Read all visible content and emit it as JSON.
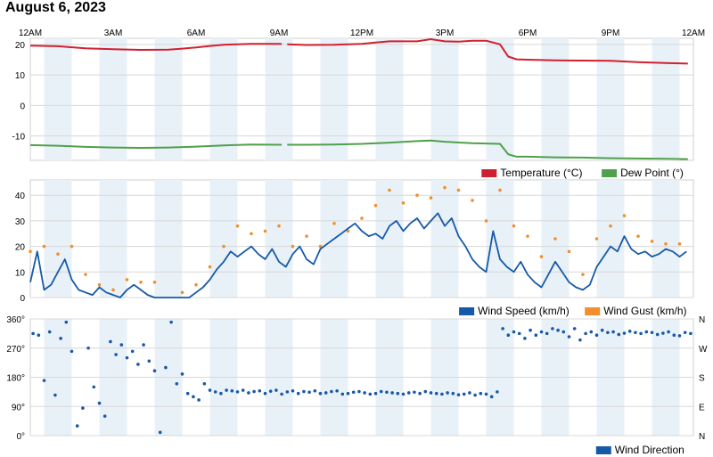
{
  "title": "August 6, 2023",
  "colors": {
    "temperature": "#d0202f",
    "dew_point": "#4fa04a",
    "wind_speed": "#1659a8",
    "wind_gust": "#f28e2b",
    "wind_direction": "#1659a8",
    "band": "#e8f1f8",
    "grid": "#d8d8d8"
  },
  "time_axis": {
    "labels": [
      "12AM",
      "3AM",
      "6AM",
      "9AM",
      "12PM",
      "3PM",
      "6PM",
      "9PM",
      "12AM"
    ],
    "range_hours": [
      0,
      24
    ]
  },
  "chart_data": [
    {
      "type": "line",
      "ylim": [
        -18,
        22
      ],
      "yticks": [
        "20",
        "10",
        "0",
        "-10"
      ],
      "legend": [
        "Temperature (°C)",
        "Dew Point (°)"
      ],
      "gap_hours": [
        9.1,
        9.3
      ],
      "series": [
        {
          "name": "Temperature (°C)",
          "x": [
            0,
            1,
            2,
            3,
            4,
            5,
            5.5,
            6,
            6.5,
            7,
            8,
            9,
            9.1,
            9.3,
            10,
            11,
            12,
            12.5,
            13,
            14,
            14.5,
            15,
            15.5,
            16,
            16.5,
            17,
            17.3,
            17.6,
            18,
            19,
            20,
            21,
            22,
            23,
            23.8
          ],
          "values": [
            19.6,
            19.4,
            18.7,
            18.4,
            18.2,
            18.3,
            18.6,
            19.0,
            19.5,
            19.9,
            20.2,
            20.2,
            20.1,
            20.0,
            19.8,
            19.9,
            20.2,
            20.6,
            21.0,
            21.0,
            21.7,
            21.0,
            20.9,
            21.2,
            21.2,
            20.0,
            16.0,
            15.1,
            15.0,
            14.8,
            14.7,
            14.6,
            14.2,
            13.9,
            13.7
          ]
        },
        {
          "name": "Dew Point (°)",
          "x": [
            0,
            1,
            2,
            3,
            4,
            5,
            6,
            7,
            8,
            9,
            9.1,
            9.3,
            10,
            11,
            12,
            13,
            14,
            14.5,
            15,
            16,
            17,
            17.3,
            17.6,
            18,
            19,
            20,
            21,
            22,
            23,
            23.8
          ],
          "values": [
            -13.0,
            -13.2,
            -13.6,
            -13.8,
            -13.9,
            -13.8,
            -13.5,
            -13.1,
            -12.8,
            -12.9,
            -12.9,
            -12.9,
            -12.9,
            -12.8,
            -12.6,
            -12.2,
            -11.7,
            -11.5,
            -11.9,
            -12.4,
            -12.6,
            -16.0,
            -16.8,
            -16.8,
            -17.0,
            -17.1,
            -17.3,
            -17.4,
            -17.5,
            -17.6
          ]
        }
      ]
    },
    {
      "type": "line",
      "ylim": [
        0,
        46
      ],
      "yticks": [
        "40",
        "30",
        "20",
        "10",
        "0"
      ],
      "legend": [
        "Wind Speed (km/h)",
        "Wind Gust (km/h)"
      ],
      "series": [
        {
          "name": "Wind Speed (km/h)",
          "x": [
            0,
            0.25,
            0.5,
            0.75,
            1,
            1.25,
            1.5,
            1.75,
            2,
            2.25,
            2.5,
            2.75,
            3,
            3.25,
            3.5,
            3.75,
            4,
            4.25,
            4.5,
            4.75,
            5,
            5.25,
            5.5,
            5.75,
            6,
            6.25,
            6.5,
            6.75,
            7,
            7.25,
            7.5,
            7.75,
            8,
            8.25,
            8.5,
            8.75,
            9,
            9.25,
            9.5,
            9.75,
            10,
            10.25,
            10.5,
            10.75,
            11,
            11.25,
            11.5,
            11.75,
            12,
            12.25,
            12.5,
            12.75,
            13,
            13.25,
            13.5,
            13.75,
            14,
            14.25,
            14.5,
            14.75,
            15,
            15.25,
            15.5,
            15.75,
            16,
            16.25,
            16.5,
            16.75,
            17,
            17.25,
            17.5,
            17.75,
            18,
            18.25,
            18.5,
            18.75,
            19,
            19.25,
            19.5,
            19.75,
            20,
            20.25,
            20.5,
            20.75,
            21,
            21.25,
            21.5,
            21.75,
            22,
            22.25,
            22.5,
            22.75,
            23,
            23.25,
            23.5,
            23.75
          ],
          "values": [
            6,
            18,
            3,
            5,
            10,
            15,
            7,
            3,
            2,
            1,
            4,
            2,
            1,
            0,
            3,
            5,
            3,
            1,
            0,
            0,
            0,
            0,
            0,
            0,
            2,
            4,
            7,
            11,
            14,
            18,
            16,
            18,
            20,
            17,
            15,
            19,
            14,
            12,
            17,
            20,
            15,
            13,
            19,
            21,
            23,
            25,
            27,
            29,
            26,
            24,
            25,
            23,
            28,
            30,
            26,
            29,
            31,
            27,
            30,
            33,
            28,
            31,
            24,
            20,
            15,
            12,
            10,
            26,
            15,
            12,
            10,
            14,
            9,
            6,
            4,
            9,
            14,
            10,
            6,
            4,
            3,
            5,
            12,
            16,
            20,
            18,
            24,
            19,
            17,
            18,
            16,
            17,
            19,
            18,
            16,
            18
          ]
        },
        {
          "name": "Wind Gust (km/h)",
          "x": [
            0,
            0.5,
            1,
            1.5,
            2,
            2.5,
            3,
            3.5,
            4,
            4.5,
            5.5,
            6,
            6.5,
            7,
            7.5,
            8,
            8.5,
            9,
            9.5,
            10,
            10.5,
            11,
            11.5,
            12,
            12.5,
            13,
            13.5,
            14,
            14.5,
            15,
            15.5,
            16,
            16.5,
            17,
            17.5,
            18,
            18.5,
            19,
            19.5,
            20,
            20.5,
            21,
            21.5,
            22,
            22.5,
            23,
            23.5
          ],
          "values": [
            18,
            20,
            17,
            20,
            9,
            5,
            3,
            7,
            6,
            6,
            2,
            5,
            12,
            20,
            28,
            25,
            26,
            28,
            20,
            24,
            20,
            29,
            26,
            31,
            36,
            42,
            37,
            40,
            39,
            43,
            42,
            38,
            30,
            42,
            28,
            24,
            16,
            23,
            18,
            9,
            23,
            28,
            32,
            24,
            22,
            21,
            21
          ]
        }
      ]
    },
    {
      "type": "scatter",
      "ylim": [
        0,
        360
      ],
      "yticks": [
        "360°",
        "270°",
        "180°",
        "90°",
        "0°"
      ],
      "right_ticks": [
        "N",
        "W",
        "S",
        "E",
        "N"
      ],
      "legend": [
        "Wind Direction"
      ],
      "series": [
        {
          "name": "Wind Direction",
          "x": [
            0.1,
            0.3,
            0.5,
            0.7,
            0.9,
            1.1,
            1.3,
            1.5,
            1.7,
            1.9,
            2.1,
            2.3,
            2.5,
            2.7,
            2.9,
            3.1,
            3.3,
            3.5,
            3.7,
            3.9,
            4.1,
            4.3,
            4.5,
            4.7,
            4.9,
            5.1,
            5.3,
            5.5,
            5.7,
            5.9,
            6.1,
            6.3,
            6.5,
            6.7,
            6.9,
            7.1,
            7.3,
            7.5,
            7.7,
            7.9,
            8.1,
            8.3,
            8.5,
            8.7,
            8.9,
            9.1,
            9.3,
            9.5,
            9.7,
            9.9,
            10.1,
            10.3,
            10.5,
            10.7,
            10.9,
            11.1,
            11.3,
            11.5,
            11.7,
            11.9,
            12.1,
            12.3,
            12.5,
            12.7,
            12.9,
            13.1,
            13.3,
            13.5,
            13.7,
            13.9,
            14.1,
            14.3,
            14.5,
            14.7,
            14.9,
            15.1,
            15.3,
            15.5,
            15.7,
            15.9,
            16.1,
            16.3,
            16.5,
            16.7,
            16.9,
            17.1,
            17.3,
            17.5,
            17.7,
            17.9,
            18.1,
            18.3,
            18.5,
            18.7,
            18.9,
            19.1,
            19.3,
            19.5,
            19.7,
            19.9,
            20.1,
            20.3,
            20.5,
            20.7,
            20.9,
            21.1,
            21.3,
            21.5,
            21.7,
            21.9,
            22.1,
            22.3,
            22.5,
            22.7,
            22.9,
            23.1,
            23.3,
            23.5,
            23.7,
            23.9
          ],
          "values": [
            315,
            310,
            170,
            320,
            125,
            300,
            350,
            260,
            30,
            85,
            270,
            150,
            100,
            60,
            290,
            250,
            280,
            240,
            260,
            220,
            280,
            230,
            200,
            10,
            210,
            350,
            160,
            190,
            130,
            120,
            110,
            160,
            140,
            135,
            130,
            140,
            138,
            135,
            140,
            132,
            136,
            138,
            130,
            137,
            140,
            128,
            135,
            138,
            130,
            136,
            134,
            138,
            130,
            132,
            136,
            138,
            128,
            130,
            134,
            136,
            132,
            128,
            130,
            136,
            134,
            132,
            130,
            128,
            132,
            134,
            130,
            136,
            132,
            130,
            128,
            132,
            130,
            126,
            128,
            132,
            125,
            130,
            128,
            120,
            135,
            330,
            310,
            320,
            315,
            300,
            325,
            310,
            320,
            315,
            330,
            325,
            320,
            305,
            330,
            295,
            315,
            320,
            310,
            325,
            318,
            320,
            312,
            316,
            322,
            318,
            315,
            320,
            318,
            312,
            316,
            320,
            310,
            308,
            318,
            315
          ]
        }
      ]
    }
  ]
}
